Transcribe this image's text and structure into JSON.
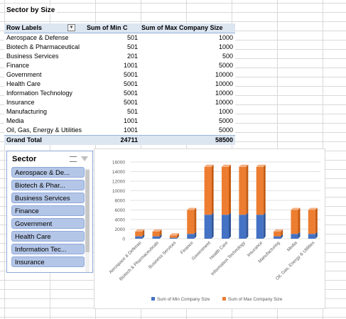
{
  "sheet": {
    "title": "Sector by Size"
  },
  "pivot": {
    "headers": [
      "Row Labels",
      "Sum of Min C",
      "Sum of Max Company Size"
    ],
    "rows": [
      {
        "label": "Aerospace & Defense",
        "min": "501",
        "max": "1000"
      },
      {
        "label": "Biotech & Pharmaceutical",
        "min": "501",
        "max": "1000"
      },
      {
        "label": "Business Services",
        "min": "201",
        "max": "500"
      },
      {
        "label": "Finance",
        "min": "1001",
        "max": "5000"
      },
      {
        "label": "Government",
        "min": "5001",
        "max": "10000"
      },
      {
        "label": "Health Care",
        "min": "5001",
        "max": "10000"
      },
      {
        "label": "Information Technology",
        "min": "5001",
        "max": "10000"
      },
      {
        "label": "Insurance",
        "min": "5001",
        "max": "10000"
      },
      {
        "label": "Manufacturing",
        "min": "501",
        "max": "1000"
      },
      {
        "label": "Media",
        "min": "1001",
        "max": "5000"
      },
      {
        "label": "Oil, Gas, Energy & Utilities",
        "min": "1001",
        "max": "5000"
      }
    ],
    "grand": {
      "label": "Grand Total",
      "min": "24711",
      "max": "58500"
    },
    "filter_icon": "dropdown-arrow-icon"
  },
  "slicer": {
    "title": "Sector",
    "items": [
      "Aerospace & De...",
      "Biotech & Phar...",
      "Business Services",
      "Finance",
      "Government",
      "Health Care",
      "Information Tec...",
      "Insurance"
    ]
  },
  "chart_data": {
    "type": "bar",
    "stacked": true,
    "categories": [
      "Aerospace & Defense",
      "Biotech & Pharmaceuticals",
      "Business Services",
      "Finance",
      "Government",
      "Health Care",
      "Information Technology",
      "Insurance",
      "Manufacturing",
      "Media",
      "Oil, Gas, Energy & Utilities"
    ],
    "series": [
      {
        "name": "Sum of  Min Company Size",
        "color": "#4472c4",
        "values": [
          501,
          501,
          201,
          1001,
          5001,
          5001,
          5001,
          5001,
          501,
          1001,
          1001
        ]
      },
      {
        "name": "Sum of  Max Company Size",
        "color": "#ed7d31",
        "values": [
          1000,
          1000,
          500,
          5000,
          10000,
          10000,
          10000,
          10000,
          1000,
          5000,
          5000
        ]
      }
    ],
    "ylim": [
      0,
      16000
    ],
    "yticks": [
      "0",
      "2000",
      "4000",
      "6000",
      "8000",
      "10000",
      "12000",
      "14000",
      "16000"
    ],
    "grid": true,
    "legend": "bottom"
  }
}
